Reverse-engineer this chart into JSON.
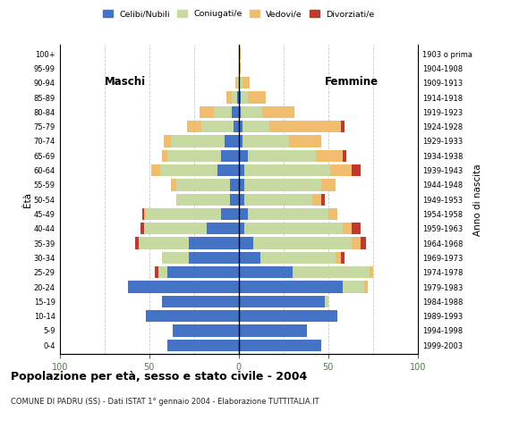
{
  "age_groups": [
    "0-4",
    "5-9",
    "10-14",
    "15-19",
    "20-24",
    "25-29",
    "30-34",
    "35-39",
    "40-44",
    "45-49",
    "50-54",
    "55-59",
    "60-64",
    "65-69",
    "70-74",
    "75-79",
    "80-84",
    "85-89",
    "90-94",
    "95-99",
    "100+"
  ],
  "birth_years": [
    "1999-2003",
    "1994-1998",
    "1989-1993",
    "1984-1988",
    "1979-1983",
    "1974-1978",
    "1969-1973",
    "1964-1968",
    "1959-1963",
    "1954-1958",
    "1949-1953",
    "1944-1948",
    "1939-1943",
    "1934-1938",
    "1929-1933",
    "1924-1928",
    "1919-1923",
    "1914-1918",
    "1909-1913",
    "1904-1908",
    "1903 o prima"
  ],
  "colors": {
    "celibe": "#4472c4",
    "coniugato": "#c5d9a0",
    "vedovo": "#f0bc6e",
    "divorziato": "#c0392b"
  },
  "male_celibe": [
    40,
    37,
    52,
    43,
    62,
    40,
    28,
    28,
    18,
    10,
    5,
    5,
    12,
    10,
    8,
    3,
    4,
    1,
    0,
    0,
    0
  ],
  "male_coniugato": [
    0,
    0,
    0,
    0,
    0,
    5,
    15,
    28,
    35,
    42,
    30,
    30,
    32,
    30,
    30,
    18,
    10,
    3,
    1,
    0,
    0
  ],
  "male_vedovo": [
    0,
    0,
    0,
    0,
    0,
    0,
    0,
    0,
    0,
    1,
    0,
    3,
    5,
    3,
    4,
    8,
    8,
    3,
    1,
    0,
    0
  ],
  "male_divorziato": [
    0,
    0,
    0,
    0,
    0,
    2,
    0,
    2,
    2,
    1,
    0,
    0,
    0,
    0,
    0,
    0,
    0,
    0,
    0,
    0,
    0
  ],
  "fem_nubile": [
    46,
    38,
    55,
    48,
    58,
    30,
    12,
    8,
    3,
    5,
    3,
    3,
    3,
    5,
    2,
    2,
    1,
    1,
    0,
    0,
    0
  ],
  "fem_coniugata": [
    0,
    0,
    0,
    2,
    12,
    43,
    42,
    55,
    55,
    45,
    38,
    43,
    48,
    38,
    26,
    15,
    12,
    4,
    2,
    0,
    0
  ],
  "fem_vedova": [
    0,
    0,
    0,
    0,
    2,
    2,
    3,
    5,
    5,
    5,
    5,
    8,
    12,
    15,
    18,
    40,
    18,
    10,
    4,
    1,
    1
  ],
  "fem_divorziata": [
    0,
    0,
    0,
    0,
    0,
    0,
    2,
    3,
    5,
    0,
    2,
    0,
    5,
    2,
    0,
    2,
    0,
    0,
    0,
    0,
    0
  ],
  "title": "Popolazione per età, sesso e stato civile - 2004",
  "subtitle": "COMUNE DI PADRU (SS) - Dati ISTAT 1° gennaio 2004 - Elaborazione TUTTITALIA.IT",
  "legend_labels": [
    "Celibi/Nubili",
    "Coniugati/e",
    "Vedovi/e",
    "Divorziati/e"
  ],
  "maschi_label": "Maschi",
  "femmine_label": "Femmine",
  "eta_label": "Ètà",
  "anno_label": "Anno di nascita",
  "xlim": 100,
  "bg_color": "#ffffff",
  "grid_color": "#c8c8c8"
}
